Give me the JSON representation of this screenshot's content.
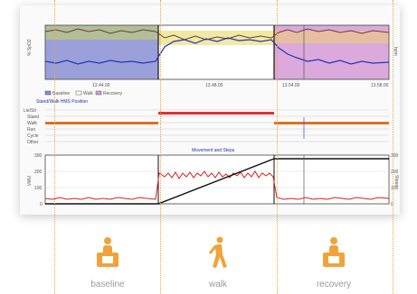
{
  "top_chart": {
    "time_labels": [
      "13.44.00",
      "13.48.00",
      "13.54.00",
      "13.58.00"
    ],
    "left_axis_label": "% SpO2",
    "right_axis_label": "bpm",
    "legend": [
      "Baseline",
      "Walk",
      "Recovery"
    ],
    "section_title": "Stand/Walk HMS Position",
    "colors": {
      "baseline": "#8a8fd4",
      "walk": "#f1e9a3",
      "recovery": "#d7a0d8",
      "spo2": "#6a3a3a",
      "hr": "#2435b5"
    }
  },
  "posture_rows": [
    "Lie/Sit",
    "Stand",
    "Walk",
    "Run",
    "Cycle",
    "Other"
  ],
  "movement_chart": {
    "title": "Movement and Steps",
    "left_axis_label": "VMU",
    "right_axis_label": "Steps",
    "left_ticks": [
      "300",
      "200",
      "100",
      "0"
    ],
    "right_ticks": [
      "300",
      "200",
      "100",
      "0"
    ],
    "colors": {
      "vmu": "#d62020",
      "steps": "#111111"
    }
  },
  "phases": [
    {
      "label": "baseline",
      "icon": "sitting-person-icon"
    },
    {
      "label": "walk",
      "icon": "walking-person-icon"
    },
    {
      "label": "recovery",
      "icon": "sitting-person-icon"
    }
  ],
  "accent_color": "#f0a33a"
}
